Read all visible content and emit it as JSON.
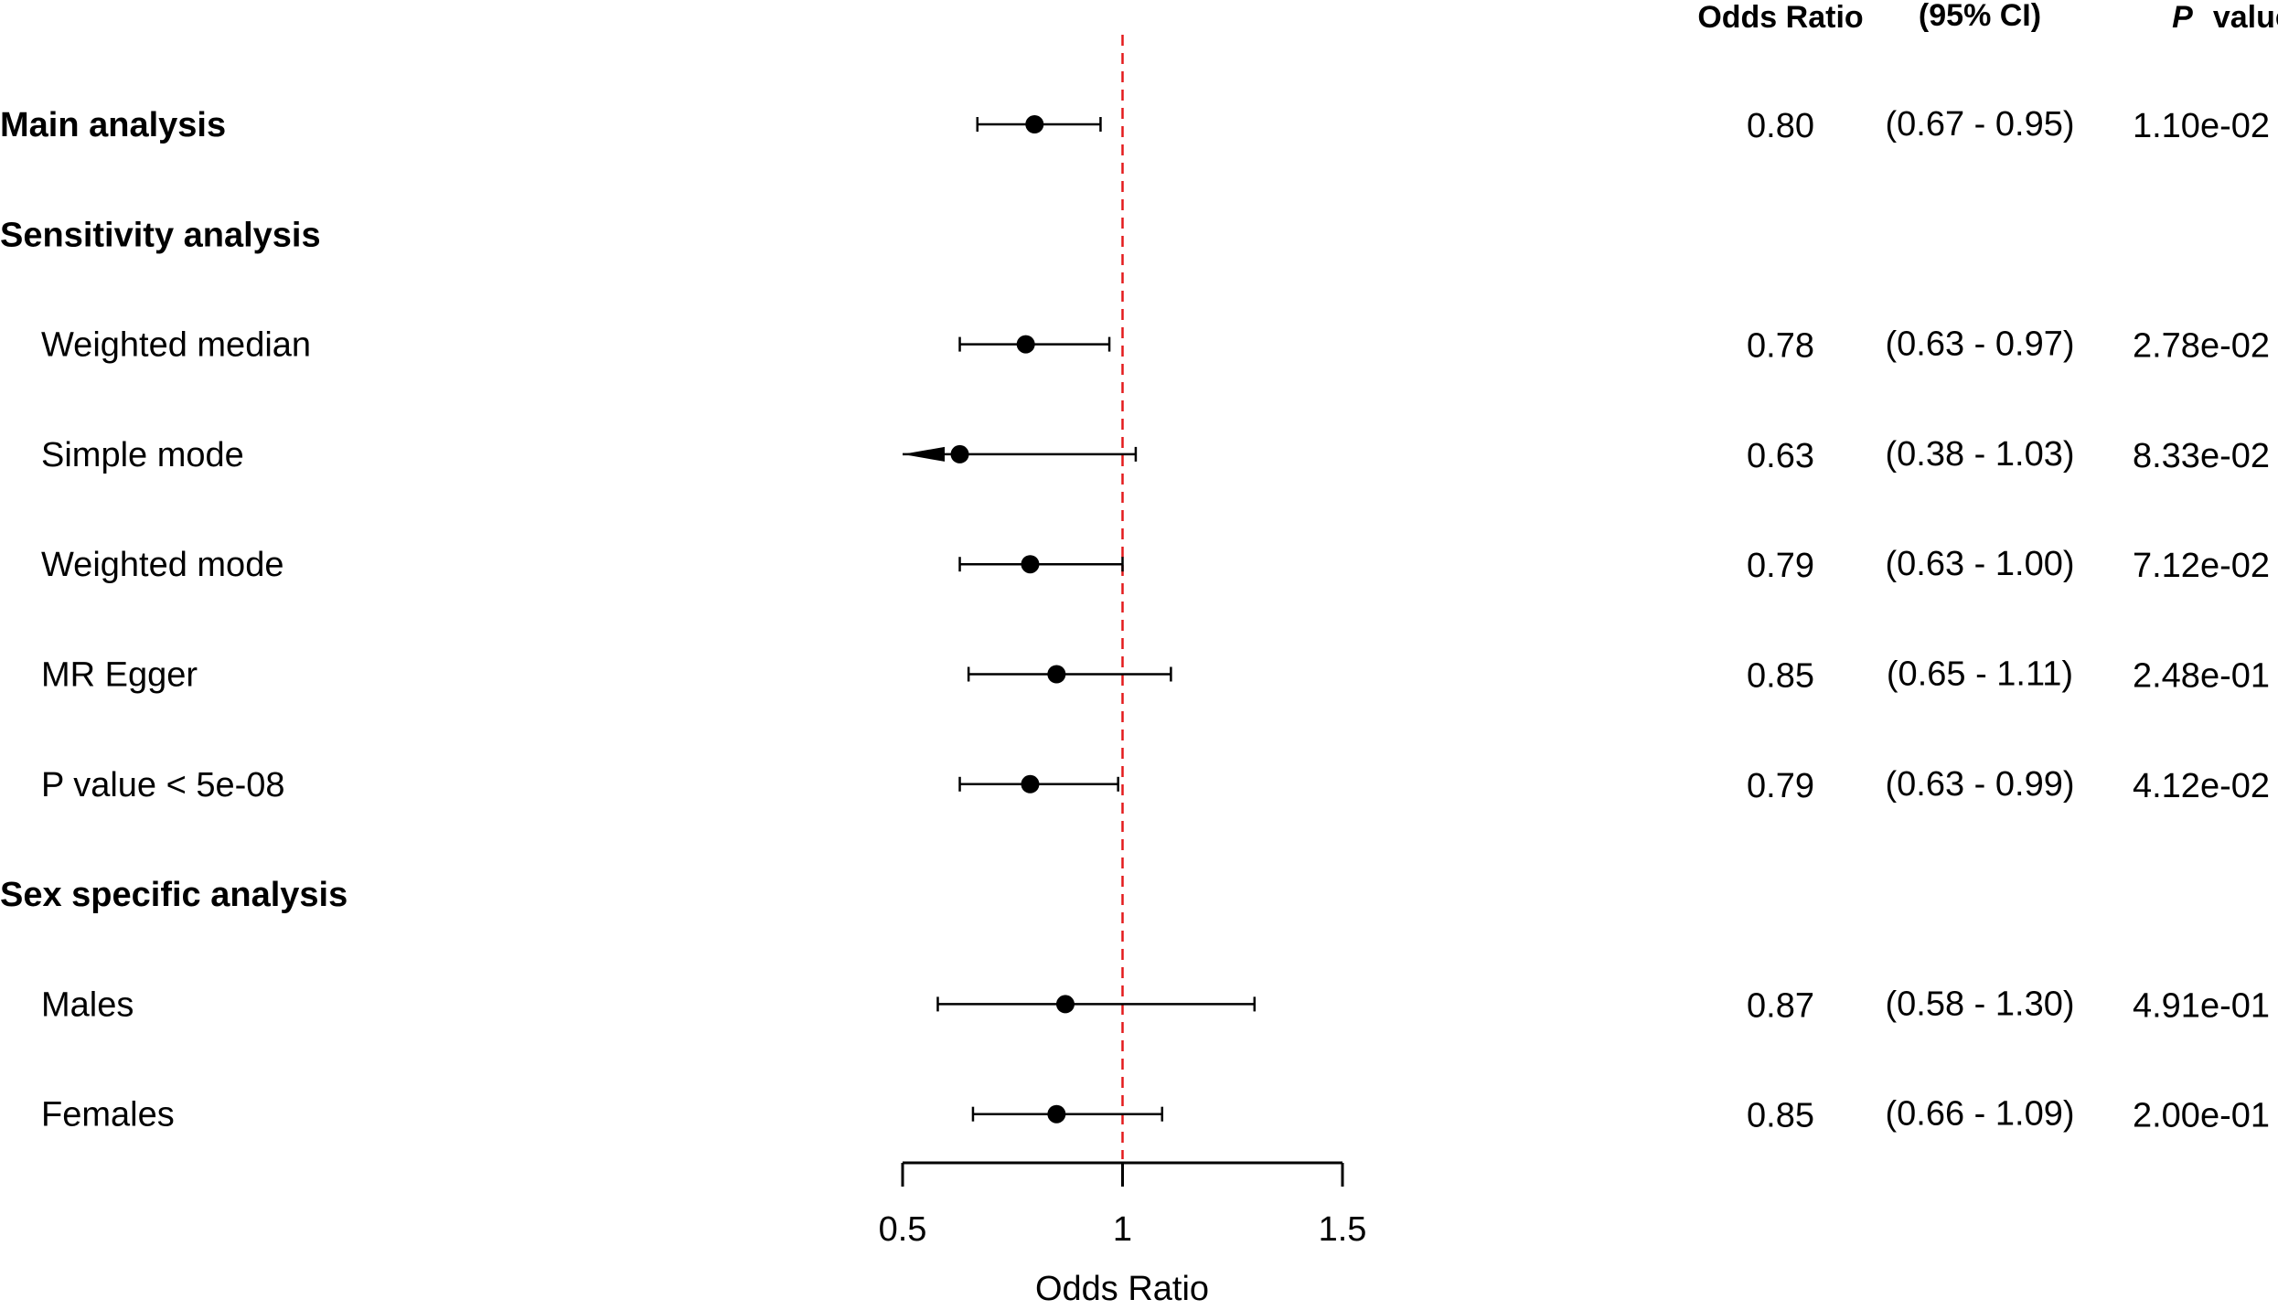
{
  "chart_data": {
    "type": "forest",
    "xlabel": "Odds Ratio",
    "xlim": [
      0.5,
      1.5
    ],
    "xticks": [
      0.5,
      1,
      1.5
    ],
    "xtick_labels": [
      "0.5",
      "1",
      "1.5"
    ],
    "reference_line": 1,
    "reference_color": "#e41a1c",
    "headers": {
      "or": "Odds Ratio",
      "ci": "(95% CI)",
      "p_italic": "P",
      "p_rest": "value"
    },
    "rows": [
      {
        "label": "Main analysis",
        "bold": true,
        "indent": false,
        "or": 0.8,
        "lo": 0.67,
        "hi": 0.95,
        "or_text": "0.80",
        "ci_text": "(0.67 - 0.95)",
        "p_text": "1.10e-02"
      },
      {
        "label": "Sensitivity analysis",
        "bold": true,
        "indent": false,
        "or": null,
        "lo": null,
        "hi": null,
        "or_text": "",
        "ci_text": "",
        "p_text": ""
      },
      {
        "label": "Weighted median",
        "bold": false,
        "indent": true,
        "or": 0.78,
        "lo": 0.63,
        "hi": 0.97,
        "or_text": "0.78",
        "ci_text": "(0.63 - 0.97)",
        "p_text": "2.78e-02"
      },
      {
        "label": "Simple mode",
        "bold": false,
        "indent": true,
        "or": 0.63,
        "lo": 0.38,
        "hi": 1.03,
        "or_text": "0.63",
        "ci_text": "(0.38 - 1.03)",
        "p_text": "8.33e-02"
      },
      {
        "label": "Weighted mode",
        "bold": false,
        "indent": true,
        "or": 0.79,
        "lo": 0.63,
        "hi": 1.0,
        "or_text": "0.79",
        "ci_text": "(0.63 - 1.00)",
        "p_text": "7.12e-02"
      },
      {
        "label": "MR Egger",
        "bold": false,
        "indent": true,
        "or": 0.85,
        "lo": 0.65,
        "hi": 1.11,
        "or_text": "0.85",
        "ci_text": "(0.65 - 1.11)",
        "p_text": "2.48e-01"
      },
      {
        "label": "P value < 5e-08",
        "bold": false,
        "indent": true,
        "or": 0.79,
        "lo": 0.63,
        "hi": 0.99,
        "or_text": "0.79",
        "ci_text": "(0.63 - 0.99)",
        "p_text": "4.12e-02"
      },
      {
        "label": "Sex specific analysis",
        "bold": true,
        "indent": false,
        "or": null,
        "lo": null,
        "hi": null,
        "or_text": "",
        "ci_text": "",
        "p_text": ""
      },
      {
        "label": "Males",
        "bold": false,
        "indent": true,
        "or": 0.87,
        "lo": 0.58,
        "hi": 1.3,
        "or_text": "0.87",
        "ci_text": "(0.58 - 1.30)",
        "p_text": "4.91e-01"
      },
      {
        "label": "Females",
        "bold": false,
        "indent": true,
        "or": 0.85,
        "lo": 0.66,
        "hi": 1.09,
        "or_text": "0.85",
        "ci_text": "(0.66 - 1.09)",
        "p_text": "2.00e-01"
      }
    ]
  }
}
